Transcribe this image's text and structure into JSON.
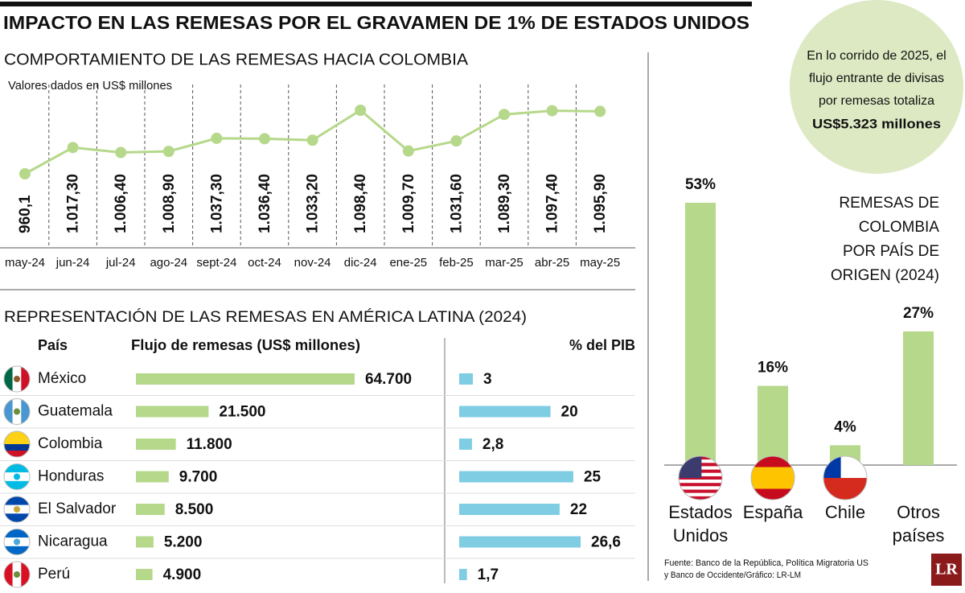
{
  "header": {
    "title": "IMPACTO EN LAS REMESAS POR EL GRAVAMEN DE 1% DE ESTADOS UNIDOS"
  },
  "chart_data": [
    {
      "type": "line",
      "title": "COMPORTAMIENTO DE LAS REMESAS HACIA COLOMBIA",
      "subtitle": "Valores dados en US$ millones",
      "categories": [
        "may-24",
        "jun-24",
        "jul-24",
        "ago-24",
        "sept-24",
        "oct-24",
        "nov-24",
        "dic-24",
        "ene-25",
        "feb-25",
        "mar-25",
        "abr-25",
        "may-25"
      ],
      "values": [
        960.1,
        1017.3,
        1006.4,
        1008.9,
        1037.3,
        1036.4,
        1033.2,
        1098.4,
        1009.7,
        1031.6,
        1089.3,
        1097.4,
        1095.9
      ],
      "value_labels": [
        "960,1",
        "1.017,30",
        "1.006,40",
        "1.008,90",
        "1.037,30",
        "1.036,40",
        "1.033,20",
        "1.098,40",
        "1.009,70",
        "1.031,60",
        "1.089,30",
        "1.097,40",
        "1.095,90"
      ],
      "color": "#b5d88a"
    },
    {
      "type": "hbar",
      "title": "REPRESENTACIÓN DE LAS REMESAS EN AMÉRICA LATINA (2024)",
      "category_header": "País",
      "categories": [
        "México",
        "Guatemala",
        "Colombia",
        "Honduras",
        "El Salvador",
        "Nicaragua",
        "Perú"
      ],
      "series": [
        {
          "name": "Flujo de remesas (US$ millones)",
          "color": "#b5d88a",
          "values": [
            64700,
            21500,
            11800,
            9700,
            8500,
            5200,
            4900
          ],
          "value_labels": [
            "64.700",
            "21.500",
            "11.800",
            "9.700",
            "8.500",
            "5.200",
            "4.900"
          ]
        },
        {
          "name": "% del PIB",
          "color": "#7ecde3",
          "values": [
            3,
            20,
            2.8,
            25,
            22,
            26.6,
            1.7
          ],
          "value_labels": [
            "3",
            "20",
            "2,8",
            "25",
            "22",
            "26,6",
            "1,7"
          ]
        }
      ]
    },
    {
      "type": "bar",
      "title": [
        "REMESAS DE",
        "COLOMBIA",
        "POR PAÍS DE",
        "ORIGEN (2024)"
      ],
      "categories": [
        "Estados Unidos",
        "España",
        "Chile",
        "Otros países"
      ],
      "values": [
        53,
        16,
        4,
        27
      ],
      "value_labels": [
        "53%",
        "16%",
        "4%",
        "27%"
      ],
      "color": "#b5d88a"
    }
  ],
  "callout": {
    "lines": [
      "En lo corrido de 2025, el",
      "flujo entrante de divisas",
      "por remesas totaliza"
    ],
    "highlight": "US$5.323 millones"
  },
  "source": [
    "Fuente: Banco de la República, Política Migratoria US",
    "y Banco de Occidente/Gráfico: LR-LM"
  ],
  "logo": "LR"
}
